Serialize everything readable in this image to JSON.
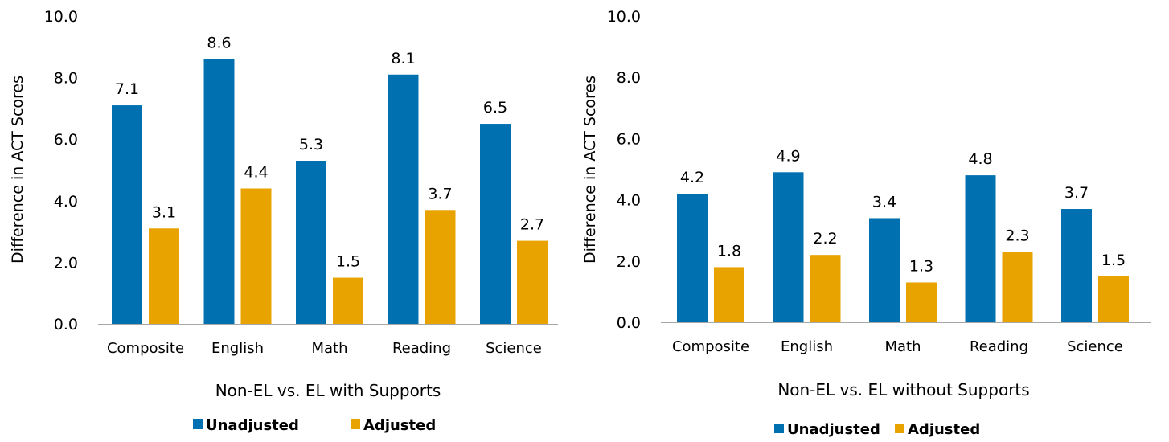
{
  "chart_data": [
    {
      "type": "bar",
      "categories": [
        "Composite",
        "English",
        "Math",
        "Reading",
        "Science"
      ],
      "series": [
        {
          "name": "Unadjusted",
          "values": [
            7.1,
            8.6,
            5.3,
            8.1,
            6.5
          ],
          "labels": [
            "7.1",
            "8.6",
            "5.3",
            "8.1",
            "6.5"
          ]
        },
        {
          "name": "Adjusted",
          "values": [
            3.1,
            4.4,
            1.5,
            3.7,
            2.7
          ],
          "labels": [
            "3.1",
            "4.4",
            "1.5",
            "3.7",
            "2.7"
          ]
        }
      ],
      "colors": [
        "#0070b0",
        "#e8a300"
      ],
      "xlabel": "Non-EL vs. EL with Supports",
      "ylabel": "Difference in ACT Scores",
      "ylim": [
        0,
        10
      ],
      "yticks": [
        "0.0",
        "2.0",
        "4.0",
        "6.0",
        "8.0",
        "10.0"
      ],
      "grid": false,
      "legend": "bottom"
    },
    {
      "type": "bar",
      "categories": [
        "Composite",
        "English",
        "Math",
        "Reading",
        "Science"
      ],
      "series": [
        {
          "name": "Unadjusted",
          "values": [
            4.2,
            4.9,
            3.4,
            4.8,
            3.7
          ],
          "labels": [
            "4.2",
            "4.9",
            "3.4",
            "4.8",
            "3.7"
          ]
        },
        {
          "name": "Adjusted",
          "values": [
            1.8,
            2.2,
            1.3,
            2.3,
            1.5
          ],
          "labels": [
            "1.8",
            "2.2",
            "1.3",
            "2.3",
            "1.5"
          ]
        }
      ],
      "colors": [
        "#0070b0",
        "#e8a300"
      ],
      "xlabel": "Non-EL vs. EL without Supports",
      "ylabel": "Difference in ACT Scores",
      "ylim": [
        0,
        10
      ],
      "yticks": [
        "0.0",
        "2.0",
        "4.0",
        "6.0",
        "8.0",
        "10.0"
      ],
      "grid": false,
      "legend": "bottom"
    }
  ]
}
